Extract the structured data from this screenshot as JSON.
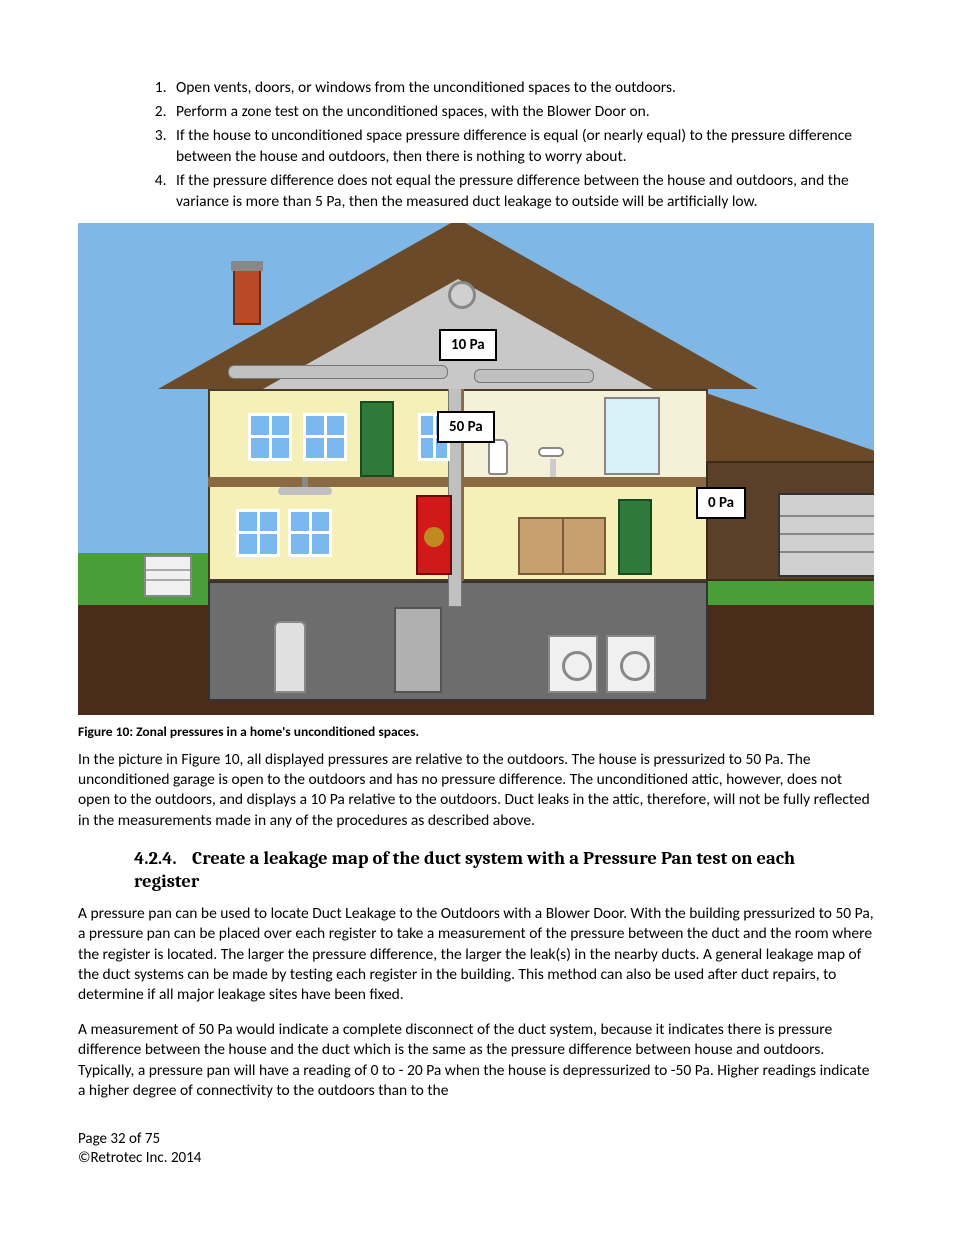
{
  "list": {
    "items": [
      "Open vents, doors, or windows from the unconditioned spaces to the outdoors.",
      "Perform a zone test on the unconditioned spaces, with the Blower Door on.",
      "If the house to unconditioned space pressure difference is equal (or nearly equal) to the pressure difference between the house and outdoors, then there is nothing to worry about.",
      "If the pressure difference does not equal the pressure difference between the house and outdoors, and the variance is more than 5 Pa, then the measured duct leakage to outside will be artificially low."
    ]
  },
  "figure": {
    "caption": "Figure 10:  Zonal pressures in a home's unconditioned spaces.",
    "labels": {
      "attic": "10 Pa",
      "living": "50 Pa",
      "garage": "0 Pa"
    },
    "colors": {
      "sky": "#7fb8e6",
      "grass": "#4a9e3a",
      "ground": "#4a2c1a",
      "roof": "#6b4a2a",
      "attic": "#c8c8c8",
      "walls": "#f5f0b8",
      "basement": "#6d6d6d",
      "window": "#7bb8f0",
      "door": "#2e7a3a",
      "blower": "#d01a1a",
      "label_bg": "#ffffff",
      "label_border": "#000000"
    }
  },
  "para1": "In the picture in Figure 10, all displayed pressures are relative to the outdoors.  The house is pressurized to 50 Pa.  The unconditioned garage is open to the outdoors and has no pressure difference.  The unconditioned attic, however, does not open to the outdoors, and displays a 10 Pa relative to the outdoors.  Duct leaks in the attic, therefore, will not be fully reflected in the measurements made in any of the procedures as described above.",
  "section": {
    "number": "4.2.4.",
    "title": "Create a leakage map of the duct system with a Pressure Pan test on each register"
  },
  "para2": "A pressure pan can be used to locate Duct Leakage to the Outdoors with a Blower Door.  With the building pressurized to 50 Pa, a pressure pan can be placed over each register to take a measurement of the pressure between the duct and the room where the register is located.  The larger the pressure difference, the larger the leak(s) in the nearby ducts.  A general leakage map of the duct systems can be made by testing each register in the building.  This method can also be used after duct repairs, to determine if all major leakage sites have been fixed.",
  "para3": "A measurement of 50 Pa would indicate a complete disconnect of the duct system, because it indicates there is pressure difference between the house and the duct which is the same as the pressure difference between house and outdoors.  Typically, a pressure pan will have a reading of 0 to - 20 Pa when the house is depressurized to -50 Pa.  Higher readings indicate a higher degree of connectivity to the outdoors than to the",
  "footer": {
    "page": "Page 32 of 75",
    "copyright": "©Retrotec Inc. 2014"
  }
}
